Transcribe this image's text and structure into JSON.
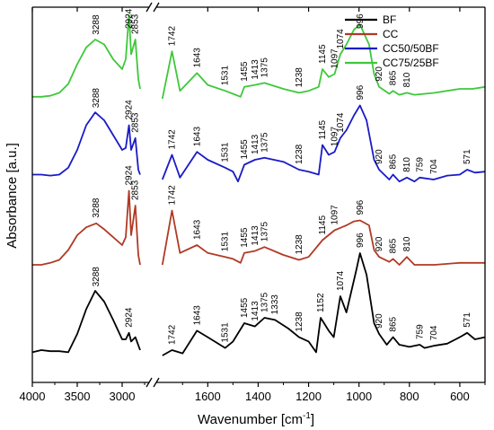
{
  "chart_data": {
    "type": "line",
    "xlabel": "Wavenumber [cm",
    "xlabel_sup": "-1",
    "xlabel_end": "]",
    "ylabel": "Absorbance [a.u.]",
    "x_axis_break": true,
    "x_reversed": true,
    "xlim": [
      4000,
      500
    ],
    "x_ticks": [
      4000,
      3500,
      3000,
      1600,
      1400,
      1200,
      1000,
      800,
      600
    ],
    "y_ticks_shown": false,
    "legend_position": "top-right",
    "series": [
      {
        "name": "BF",
        "color": "#000000",
        "points": [
          [
            4000,
            -0.02
          ],
          [
            3900,
            0.0
          ],
          [
            3800,
            -0.01
          ],
          [
            3700,
            -0.01
          ],
          [
            3600,
            -0.02
          ],
          [
            3500,
            0.15
          ],
          [
            3400,
            0.38
          ],
          [
            3300,
            0.55
          ],
          [
            3200,
            0.45
          ],
          [
            3100,
            0.28
          ],
          [
            3000,
            0.1
          ],
          [
            2960,
            0.1
          ],
          [
            2924,
            0.16
          ],
          [
            2900,
            0.08
          ],
          [
            2853,
            0.12
          ],
          [
            2800,
            0.0
          ],
          [
            1780,
            -0.05
          ],
          [
            1742,
            0.0
          ],
          [
            1700,
            -0.03
          ],
          [
            1643,
            0.18
          ],
          [
            1600,
            0.12
          ],
          [
            1531,
            0.02
          ],
          [
            1500,
            0.08
          ],
          [
            1455,
            0.25
          ],
          [
            1413,
            0.22
          ],
          [
            1375,
            0.3
          ],
          [
            1333,
            0.28
          ],
          [
            1280,
            0.2
          ],
          [
            1238,
            0.12
          ],
          [
            1200,
            0.08
          ],
          [
            1170,
            -0.02
          ],
          [
            1152,
            0.3
          ],
          [
            1120,
            0.18
          ],
          [
            1100,
            0.12
          ],
          [
            1074,
            0.5
          ],
          [
            1050,
            0.35
          ],
          [
            1030,
            0.55
          ],
          [
            1010,
            0.75
          ],
          [
            996,
            0.9
          ],
          [
            970,
            0.7
          ],
          [
            940,
            0.25
          ],
          [
            920,
            0.15
          ],
          [
            890,
            0.05
          ],
          [
            865,
            0.12
          ],
          [
            840,
            0.05
          ],
          [
            800,
            0.03
          ],
          [
            759,
            0.05
          ],
          [
            740,
            0.02
          ],
          [
            704,
            0.04
          ],
          [
            650,
            0.06
          ],
          [
            600,
            0.12
          ],
          [
            571,
            0.16
          ],
          [
            540,
            0.1
          ],
          [
            500,
            0.12
          ]
        ],
        "peak_labels": [
          {
            "x": 3288,
            "text": "3288"
          },
          {
            "x": 2924,
            "text": "2924"
          },
          {
            "x": 1742,
            "text": "1742"
          },
          {
            "x": 1643,
            "text": "1643"
          },
          {
            "x": 1531,
            "text": "1531"
          },
          {
            "x": 1455,
            "text": "1455"
          },
          {
            "x": 1413,
            "text": "1413"
          },
          {
            "x": 1375,
            "text": "1375"
          },
          {
            "x": 1333,
            "text": "1333"
          },
          {
            "x": 1238,
            "text": "1238"
          },
          {
            "x": 1152,
            "text": "1152"
          },
          {
            "x": 1074,
            "text": "1074"
          },
          {
            "x": 996,
            "text": "996"
          },
          {
            "x": 920,
            "text": "920"
          },
          {
            "x": 865,
            "text": "865"
          },
          {
            "x": 759,
            "text": "759"
          },
          {
            "x": 704,
            "text": "704"
          },
          {
            "x": 571,
            "text": "571"
          }
        ]
      },
      {
        "name": "CC",
        "color": "#b03a24",
        "points": [
          [
            4000,
            0.0
          ],
          [
            3900,
            0.0
          ],
          [
            3800,
            0.02
          ],
          [
            3700,
            0.05
          ],
          [
            3600,
            0.15
          ],
          [
            3500,
            0.3
          ],
          [
            3400,
            0.38
          ],
          [
            3288,
            0.42
          ],
          [
            3200,
            0.36
          ],
          [
            3100,
            0.28
          ],
          [
            3000,
            0.2
          ],
          [
            2960,
            0.28
          ],
          [
            2924,
            0.75
          ],
          [
            2900,
            0.3
          ],
          [
            2853,
            0.6
          ],
          [
            2820,
            0.1
          ],
          [
            2800,
            0.0
          ],
          [
            1780,
            0.0
          ],
          [
            1742,
            0.55
          ],
          [
            1710,
            0.12
          ],
          [
            1643,
            0.2
          ],
          [
            1600,
            0.12
          ],
          [
            1531,
            0.08
          ],
          [
            1500,
            0.06
          ],
          [
            1470,
            0.02
          ],
          [
            1455,
            0.12
          ],
          [
            1413,
            0.14
          ],
          [
            1375,
            0.18
          ],
          [
            1300,
            0.1
          ],
          [
            1238,
            0.05
          ],
          [
            1200,
            0.08
          ],
          [
            1145,
            0.25
          ],
          [
            1097,
            0.35
          ],
          [
            1050,
            0.4
          ],
          [
            1020,
            0.44
          ],
          [
            996,
            0.45
          ],
          [
            960,
            0.4
          ],
          [
            940,
            0.15
          ],
          [
            920,
            0.08
          ],
          [
            880,
            0.03
          ],
          [
            865,
            0.06
          ],
          [
            840,
            0.0
          ],
          [
            810,
            0.08
          ],
          [
            780,
            0.0
          ],
          [
            700,
            0.0
          ],
          [
            600,
            0.02
          ],
          [
            500,
            0.02
          ]
        ],
        "peak_labels": [
          {
            "x": 3288,
            "text": "3288"
          },
          {
            "x": 2924,
            "text": "2924"
          },
          {
            "x": 2853,
            "text": "2853"
          },
          {
            "x": 1742,
            "text": "1742"
          },
          {
            "x": 1643,
            "text": "1643"
          },
          {
            "x": 1531,
            "text": "1531"
          },
          {
            "x": 1455,
            "text": "1455"
          },
          {
            "x": 1413,
            "text": "1413"
          },
          {
            "x": 1375,
            "text": "1375"
          },
          {
            "x": 1238,
            "text": "1238"
          },
          {
            "x": 1145,
            "text": "1145"
          },
          {
            "x": 1097,
            "text": "1097"
          },
          {
            "x": 996,
            "text": "996"
          },
          {
            "x": 920,
            "text": "920"
          },
          {
            "x": 865,
            "text": "865"
          },
          {
            "x": 810,
            "text": "810"
          }
        ]
      },
      {
        "name": "CC50/50BF",
        "color": "#1a1ac8",
        "points": [
          [
            4000,
            0.05
          ],
          [
            3900,
            0.05
          ],
          [
            3800,
            0.04
          ],
          [
            3700,
            0.05
          ],
          [
            3600,
            0.12
          ],
          [
            3500,
            0.3
          ],
          [
            3400,
            0.55
          ],
          [
            3300,
            0.68
          ],
          [
            3200,
            0.6
          ],
          [
            3100,
            0.45
          ],
          [
            3000,
            0.3
          ],
          [
            2960,
            0.32
          ],
          [
            2924,
            0.55
          ],
          [
            2900,
            0.3
          ],
          [
            2853,
            0.42
          ],
          [
            2820,
            0.1
          ],
          [
            2800,
            0.05
          ],
          [
            1780,
            0.0
          ],
          [
            1742,
            0.25
          ],
          [
            1710,
            0.02
          ],
          [
            1643,
            0.28
          ],
          [
            1600,
            0.2
          ],
          [
            1531,
            0.12
          ],
          [
            1500,
            0.08
          ],
          [
            1480,
            -0.02
          ],
          [
            1455,
            0.15
          ],
          [
            1413,
            0.2
          ],
          [
            1375,
            0.22
          ],
          [
            1300,
            0.18
          ],
          [
            1238,
            0.1
          ],
          [
            1200,
            0.08
          ],
          [
            1160,
            0.05
          ],
          [
            1145,
            0.35
          ],
          [
            1120,
            0.25
          ],
          [
            1097,
            0.28
          ],
          [
            1074,
            0.42
          ],
          [
            1050,
            0.5
          ],
          [
            1020,
            0.65
          ],
          [
            996,
            0.75
          ],
          [
            970,
            0.6
          ],
          [
            940,
            0.2
          ],
          [
            920,
            0.1
          ],
          [
            880,
            0.0
          ],
          [
            865,
            0.05
          ],
          [
            840,
            -0.02
          ],
          [
            810,
            0.02
          ],
          [
            780,
            -0.02
          ],
          [
            759,
            0.02
          ],
          [
            704,
            0.0
          ],
          [
            650,
            0.04
          ],
          [
            600,
            0.05
          ],
          [
            571,
            0.1
          ],
          [
            540,
            0.07
          ],
          [
            500,
            0.08
          ]
        ],
        "peak_labels": [
          {
            "x": 3288,
            "text": "3288"
          },
          {
            "x": 2924,
            "text": "2924"
          },
          {
            "x": 2853,
            "text": "2853"
          },
          {
            "x": 1742,
            "text": "1742"
          },
          {
            "x": 1643,
            "text": "1643"
          },
          {
            "x": 1531,
            "text": "1531"
          },
          {
            "x": 1455,
            "text": "1455"
          },
          {
            "x": 1413,
            "text": "1413"
          },
          {
            "x": 1375,
            "text": "1375"
          },
          {
            "x": 1238,
            "text": "1238"
          },
          {
            "x": 1145,
            "text": "1145"
          },
          {
            "x": 1097,
            "text": "1097"
          },
          {
            "x": 1074,
            "text": "1074"
          },
          {
            "x": 996,
            "text": "996"
          },
          {
            "x": 920,
            "text": "920"
          },
          {
            "x": 865,
            "text": "865"
          },
          {
            "x": 810,
            "text": "810"
          },
          {
            "x": 759,
            "text": "759"
          },
          {
            "x": 704,
            "text": "704"
          },
          {
            "x": 571,
            "text": "571"
          }
        ]
      },
      {
        "name": "CC75/25BF",
        "color": "#3ec83a",
        "points": [
          [
            4000,
            0.02
          ],
          [
            3900,
            0.02
          ],
          [
            3800,
            0.03
          ],
          [
            3700,
            0.06
          ],
          [
            3600,
            0.15
          ],
          [
            3500,
            0.35
          ],
          [
            3400,
            0.52
          ],
          [
            3300,
            0.6
          ],
          [
            3200,
            0.55
          ],
          [
            3100,
            0.4
          ],
          [
            3000,
            0.3
          ],
          [
            2960,
            0.4
          ],
          [
            2924,
            0.85
          ],
          [
            2900,
            0.45
          ],
          [
            2853,
            0.6
          ],
          [
            2820,
            0.2
          ],
          [
            2800,
            0.1
          ],
          [
            1780,
            0.0
          ],
          [
            1742,
            0.48
          ],
          [
            1710,
            0.08
          ],
          [
            1643,
            0.26
          ],
          [
            1600,
            0.14
          ],
          [
            1531,
            0.08
          ],
          [
            1500,
            0.05
          ],
          [
            1470,
            0.02
          ],
          [
            1455,
            0.12
          ],
          [
            1413,
            0.14
          ],
          [
            1375,
            0.16
          ],
          [
            1300,
            0.1
          ],
          [
            1238,
            0.06
          ],
          [
            1200,
            0.08
          ],
          [
            1160,
            0.12
          ],
          [
            1145,
            0.3
          ],
          [
            1120,
            0.22
          ],
          [
            1097,
            0.25
          ],
          [
            1074,
            0.45
          ],
          [
            1050,
            0.55
          ],
          [
            1020,
            0.7
          ],
          [
            996,
            0.75
          ],
          [
            960,
            0.55
          ],
          [
            940,
            0.25
          ],
          [
            920,
            0.12
          ],
          [
            880,
            0.05
          ],
          [
            865,
            0.08
          ],
          [
            840,
            0.04
          ],
          [
            810,
            0.06
          ],
          [
            780,
            0.04
          ],
          [
            700,
            0.06
          ],
          [
            600,
            0.1
          ],
          [
            550,
            0.1
          ],
          [
            500,
            0.12
          ]
        ],
        "peak_labels": [
          {
            "x": 3288,
            "text": "3288"
          },
          {
            "x": 2924,
            "text": "2924"
          },
          {
            "x": 2853,
            "text": "2853"
          },
          {
            "x": 1742,
            "text": "1742"
          },
          {
            "x": 1643,
            "text": "1643"
          },
          {
            "x": 1531,
            "text": "1531"
          },
          {
            "x": 1455,
            "text": "1455"
          },
          {
            "x": 1413,
            "text": "1413"
          },
          {
            "x": 1375,
            "text": "1375"
          },
          {
            "x": 1238,
            "text": "1238"
          },
          {
            "x": 1145,
            "text": "1145"
          },
          {
            "x": 1097,
            "text": "1097"
          },
          {
            "x": 1074,
            "text": "1074"
          },
          {
            "x": 996,
            "text": "996"
          },
          {
            "x": 920,
            "text": "920"
          },
          {
            "x": 865,
            "text": "865"
          },
          {
            "x": 810,
            "text": "810"
          }
        ]
      }
    ]
  }
}
